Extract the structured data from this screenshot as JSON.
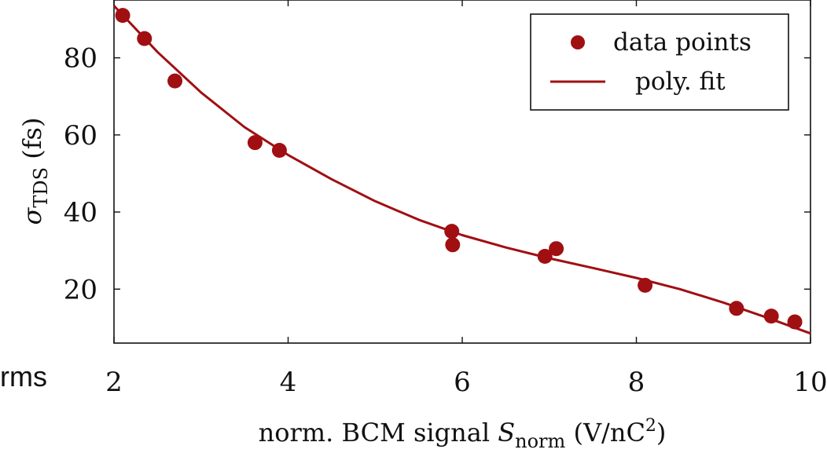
{
  "stray_label": "rms",
  "chart_data": {
    "type": "scatter",
    "xlabel": {
      "prefix": "norm. BCM signal ",
      "symbol": "S",
      "subscript": "norm",
      "units_open": " (V/nC",
      "superscript": "2",
      "units_close": ")"
    },
    "ylabel": {
      "symbol": "σ",
      "subscript": "TDS",
      "units": " (fs)"
    },
    "xlim": [
      2,
      10
    ],
    "ylim": [
      6,
      95
    ],
    "xticks": [
      "2",
      "4",
      "6",
      "8",
      "10"
    ],
    "yticks": [
      "20",
      "40",
      "60",
      "80"
    ],
    "grid": false,
    "legend_position": "top-right",
    "color": "#a00f12",
    "series": [
      {
        "name": "data points",
        "kind": "markers",
        "x": [
          2.1,
          2.35,
          2.7,
          3.62,
          3.9,
          5.88,
          5.89,
          6.95,
          7.08,
          8.1,
          9.15,
          9.55,
          9.82
        ],
        "y": [
          91,
          85,
          74,
          58,
          56,
          35,
          31.5,
          28.5,
          30.5,
          21,
          15,
          13,
          11.5
        ]
      },
      {
        "name": "poly. fit",
        "kind": "line",
        "x": [
          2.0,
          2.5,
          3.0,
          3.5,
          4.0,
          4.5,
          5.0,
          5.5,
          6.0,
          6.5,
          7.0,
          7.5,
          8.0,
          8.5,
          9.0,
          9.5,
          10.0
        ],
        "y": [
          93.5,
          81.5,
          71.0,
          62.0,
          54.8,
          48.5,
          42.8,
          38.0,
          34.0,
          30.8,
          28.0,
          25.5,
          22.9,
          20.0,
          16.5,
          12.6,
          8.5
        ]
      }
    ]
  }
}
